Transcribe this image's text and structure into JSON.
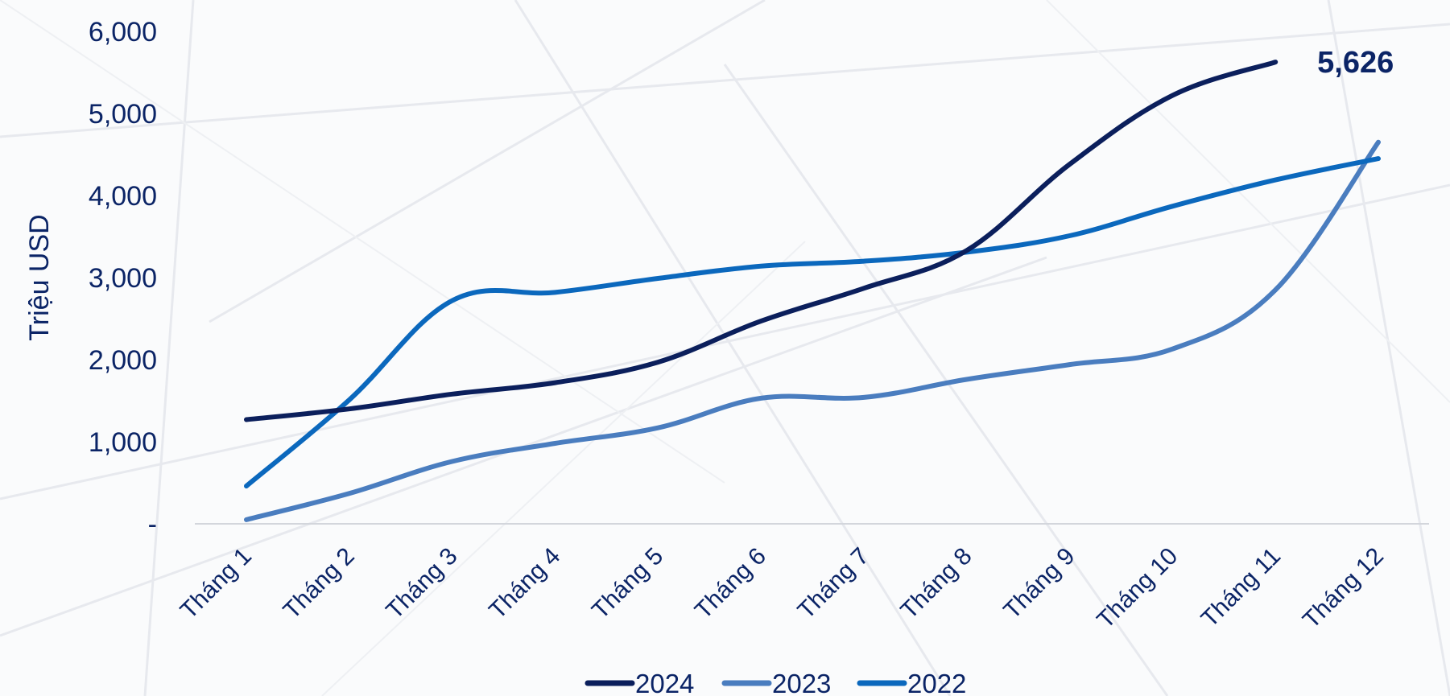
{
  "chart_data": {
    "type": "line",
    "ylabel": "Triệu USD",
    "ylim": [
      0,
      6000
    ],
    "yticks": [
      {
        "value": 0,
        "label": "-"
      },
      {
        "value": 1000,
        "label": "1,000"
      },
      {
        "value": 2000,
        "label": "2,000"
      },
      {
        "value": 3000,
        "label": "3,000"
      },
      {
        "value": 4000,
        "label": "4,000"
      },
      {
        "value": 5000,
        "label": "5,000"
      },
      {
        "value": 6000,
        "label": "6,000"
      }
    ],
    "categories": [
      "Tháng 1",
      "Tháng 2",
      "Tháng 3",
      "Tháng 4",
      "Tháng 5",
      "Tháng 6",
      "Tháng 7",
      "Tháng 8",
      "Tháng 9",
      "Tháng 10",
      "Tháng 11",
      "Tháng 12"
    ],
    "series": [
      {
        "name": "2024",
        "color": "#0b1f5c",
        "values": [
          1270,
          1400,
          1580,
          1720,
          1970,
          2470,
          2870,
          3330,
          4380,
          5220,
          5626,
          null
        ]
      },
      {
        "name": "2023",
        "color": "#4a7dbf",
        "values": [
          50,
          370,
          760,
          980,
          1170,
          1530,
          1540,
          1760,
          1940,
          2130,
          2850,
          4650
        ]
      },
      {
        "name": "2022",
        "color": "#0b68bd",
        "values": [
          460,
          1510,
          2720,
          2820,
          2990,
          3140,
          3200,
          3310,
          3510,
          3870,
          4190,
          4450
        ]
      }
    ],
    "annotations": [
      {
        "series": "2024",
        "category": "Tháng 11",
        "text": "5,626"
      }
    ],
    "legend": {
      "position": "bottom",
      "items": [
        "2024",
        "2023",
        "2022"
      ]
    },
    "grid": false
  }
}
